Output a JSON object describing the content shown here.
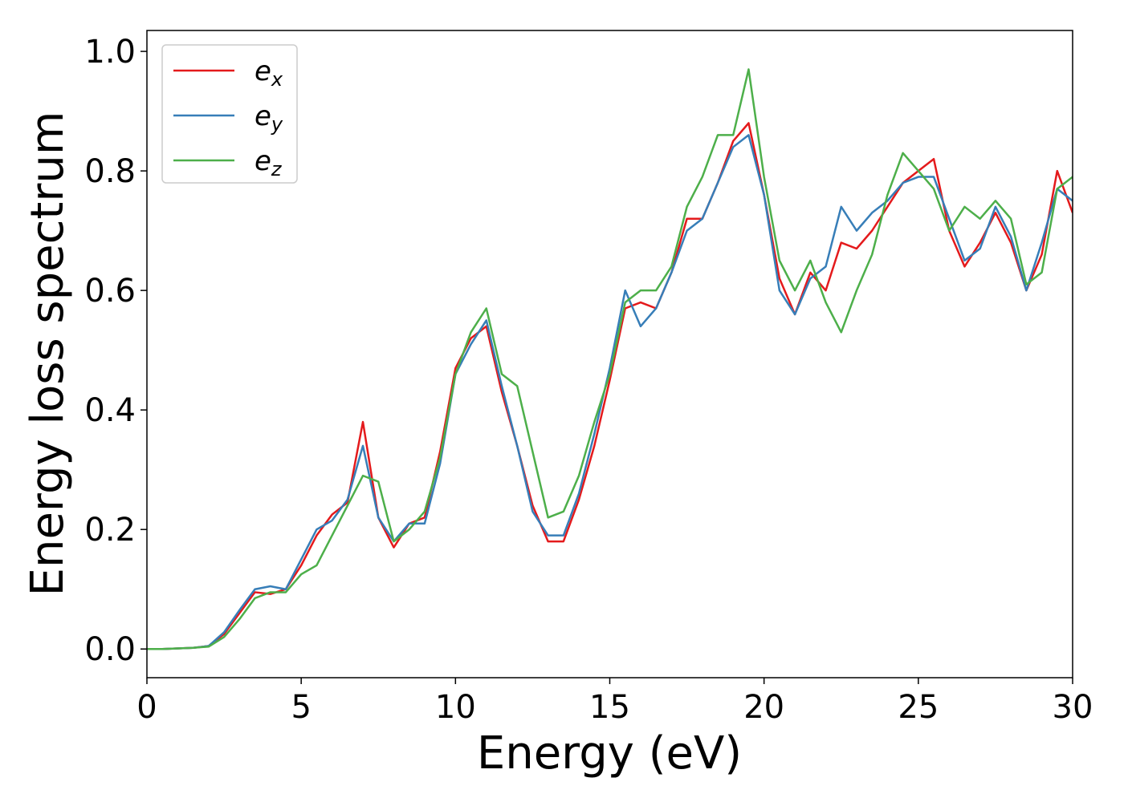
{
  "chart_data": {
    "type": "line",
    "xlabel": "Energy (eV)",
    "ylabel": "Energy loss spectrum",
    "x": [
      0,
      0.5,
      1,
      1.5,
      2,
      2.5,
      3,
      3.5,
      4,
      4.5,
      5,
      5.5,
      6,
      6.5,
      7,
      7.5,
      8,
      8.5,
      9,
      9.5,
      10,
      10.5,
      11,
      11.5,
      12,
      12.5,
      13,
      13.5,
      14,
      14.5,
      15,
      15.5,
      16,
      16.5,
      17,
      17.5,
      18,
      18.5,
      19,
      19.5,
      20,
      20.5,
      21,
      21.5,
      22,
      22.5,
      23,
      23.5,
      24,
      24.5,
      25,
      25.5,
      26,
      26.5,
      27,
      27.5,
      28,
      28.5,
      29,
      29.5,
      30
    ],
    "series": [
      {
        "name": "ex",
        "color": "#e41a1c",
        "values": [
          0,
          0,
          0.001,
          0.002,
          0.005,
          0.025,
          0.06,
          0.095,
          0.092,
          0.1,
          0.14,
          0.19,
          0.225,
          0.245,
          0.38,
          0.22,
          0.17,
          0.21,
          0.22,
          0.33,
          0.47,
          0.52,
          0.54,
          0.43,
          0.34,
          0.24,
          0.18,
          0.18,
          0.25,
          0.34,
          0.45,
          0.57,
          0.58,
          0.57,
          0.63,
          0.72,
          0.72,
          0.78,
          0.85,
          0.88,
          0.76,
          0.62,
          0.56,
          0.63,
          0.6,
          0.68,
          0.67,
          0.7,
          0.74,
          0.78,
          0.8,
          0.82,
          0.7,
          0.64,
          0.68,
          0.73,
          0.68,
          0.6,
          0.66,
          0.8,
          0.73
        ]
      },
      {
        "name": "ey",
        "color": "#377eb8",
        "values": [
          0,
          0,
          0.001,
          0.002,
          0.005,
          0.028,
          0.065,
          0.1,
          0.105,
          0.1,
          0.15,
          0.2,
          0.215,
          0.25,
          0.34,
          0.22,
          0.18,
          0.21,
          0.21,
          0.31,
          0.46,
          0.51,
          0.55,
          0.44,
          0.34,
          0.23,
          0.19,
          0.19,
          0.26,
          0.36,
          0.47,
          0.6,
          0.54,
          0.57,
          0.63,
          0.7,
          0.72,
          0.78,
          0.84,
          0.86,
          0.76,
          0.6,
          0.56,
          0.62,
          0.64,
          0.74,
          0.7,
          0.73,
          0.75,
          0.78,
          0.79,
          0.79,
          0.72,
          0.65,
          0.67,
          0.74,
          0.69,
          0.6,
          0.68,
          0.77,
          0.75
        ]
      },
      {
        "name": "ez",
        "color": "#4daf4a",
        "values": [
          0,
          0,
          0.001,
          0.002,
          0.004,
          0.02,
          0.05,
          0.085,
          0.095,
          0.095,
          0.125,
          0.14,
          0.19,
          0.24,
          0.29,
          0.28,
          0.18,
          0.2,
          0.23,
          0.32,
          0.46,
          0.53,
          0.57,
          0.46,
          0.44,
          0.33,
          0.22,
          0.23,
          0.29,
          0.38,
          0.46,
          0.58,
          0.6,
          0.6,
          0.64,
          0.74,
          0.79,
          0.86,
          0.86,
          0.97,
          0.79,
          0.65,
          0.6,
          0.65,
          0.58,
          0.53,
          0.6,
          0.66,
          0.76,
          0.83,
          0.8,
          0.77,
          0.7,
          0.74,
          0.72,
          0.75,
          0.72,
          0.61,
          0.63,
          0.77,
          0.79
        ]
      }
    ],
    "xlim": [
      0,
      30
    ],
    "xticks": [
      0,
      5,
      10,
      15,
      20,
      25,
      30
    ],
    "ylim": [
      -0.048,
      1.035
    ],
    "yticks": [
      {
        "value": 0,
        "label": "0.0"
      },
      0.2,
      0.4,
      0.6,
      0.8,
      {
        "value": 1,
        "label": "1.0"
      }
    ],
    "legend": "upper left"
  }
}
